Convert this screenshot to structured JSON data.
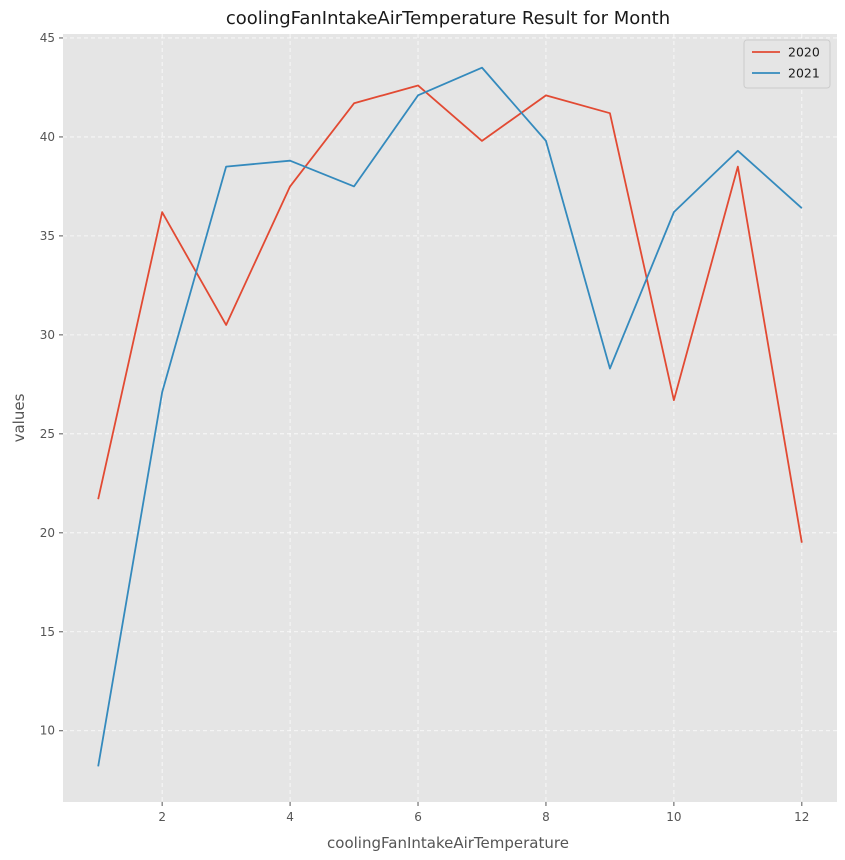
{
  "chart_data": {
    "type": "line",
    "title": "coolingFanIntakeAirTemperature Result for Month",
    "xlabel": "coolingFanIntakeAirTemperature",
    "ylabel": "values",
    "x": [
      1,
      2,
      3,
      4,
      5,
      6,
      7,
      8,
      9,
      10,
      11,
      12
    ],
    "xlim": [
      0.45,
      12.55
    ],
    "ylim": [
      6.4,
      45.2
    ],
    "xticks": [
      2,
      4,
      6,
      8,
      10,
      12
    ],
    "yticks": [
      10,
      15,
      20,
      25,
      30,
      35,
      40,
      45
    ],
    "grid": true,
    "legend_position": "top-right",
    "series": [
      {
        "name": "2020",
        "color": "#E24A33",
        "values": [
          21.7,
          36.2,
          30.5,
          37.5,
          41.7,
          42.6,
          39.8,
          42.1,
          41.2,
          26.7,
          38.5,
          19.5
        ]
      },
      {
        "name": "2021",
        "color": "#348ABD",
        "values": [
          8.2,
          27.1,
          38.5,
          38.8,
          37.5,
          42.1,
          43.5,
          39.8,
          28.3,
          36.2,
          39.3,
          36.4
        ]
      }
    ]
  }
}
